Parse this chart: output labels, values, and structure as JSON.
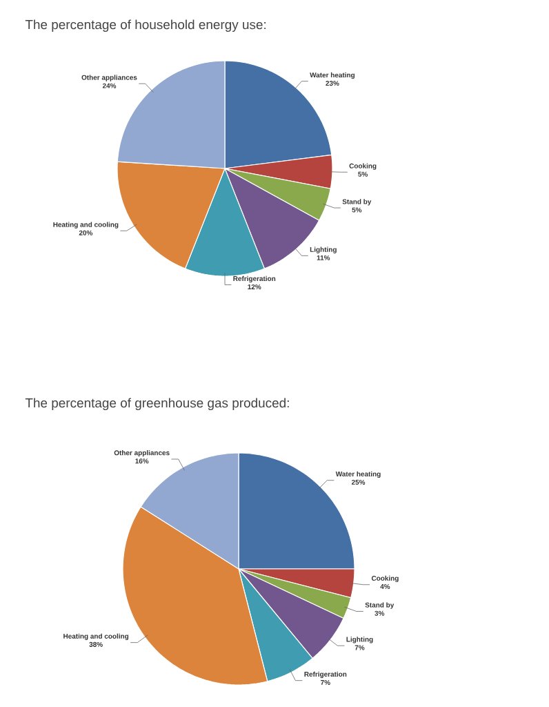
{
  "chart_data": [
    {
      "type": "pie",
      "title": "The percentage of household energy use:",
      "categories": [
        "Water heating",
        "Cooking",
        "Stand by",
        "Lighting",
        "Refrigeration",
        "Heating and cooling",
        "Other appliances"
      ],
      "values": [
        23,
        5,
        5,
        11,
        12,
        20,
        24
      ],
      "value_labels": [
        "23%",
        "5%",
        "5%",
        "11%",
        "12%",
        "20%",
        "24%"
      ],
      "colors": [
        "#4470a6",
        "#b5443f",
        "#8aa94c",
        "#72578f",
        "#3f9cb1",
        "#dc843c",
        "#93a8d0"
      ]
    },
    {
      "type": "pie",
      "title": "The percentage of greenhouse gas produced:",
      "categories": [
        "Water heating",
        "Cooking",
        "Stand by",
        "Lighting",
        "Refrigeration",
        "Heating and cooling",
        "Other appliances"
      ],
      "values": [
        25,
        4,
        3,
        7,
        7,
        38,
        16
      ],
      "value_labels": [
        "25%",
        "4%",
        "3%",
        "7%",
        "7%",
        "38%",
        "16%"
      ],
      "colors": [
        "#4470a6",
        "#b5443f",
        "#8aa94c",
        "#72578f",
        "#3f9cb1",
        "#dc843c",
        "#93a8d0"
      ]
    }
  ]
}
